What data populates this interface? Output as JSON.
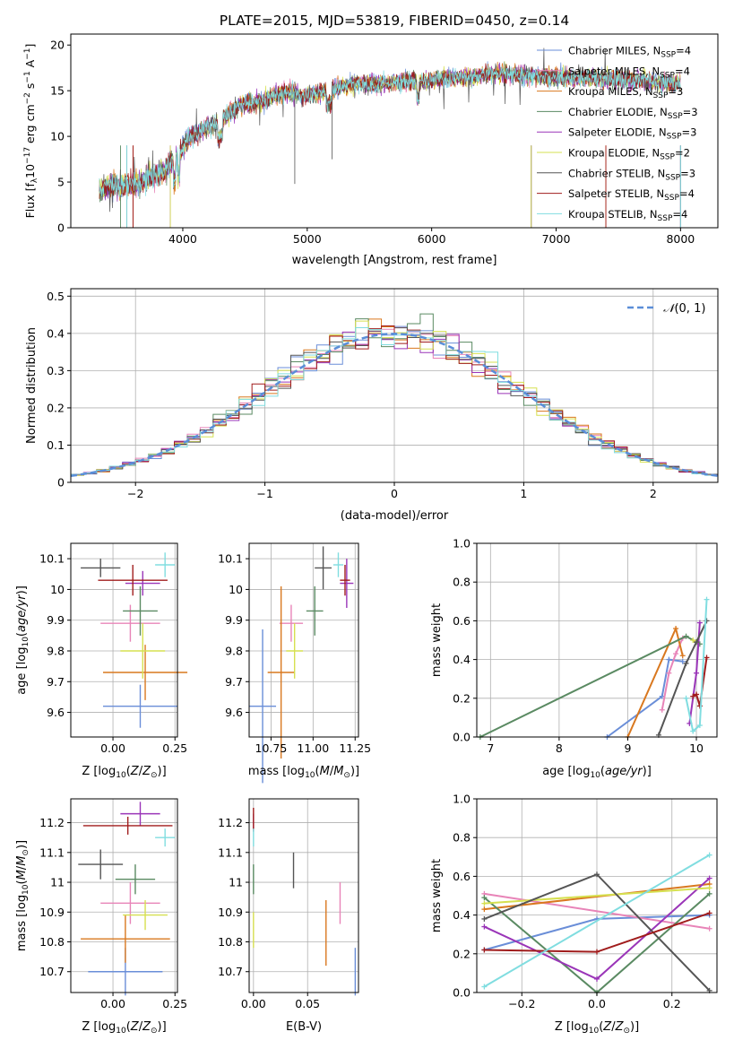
{
  "figure_title": "PLATE=2015, MJD=53819, FIBERID=0450, z=0.14",
  "series_styles": [
    {
      "name": "Chabrier MILES, N$_{SSP}$=4",
      "legend": "Chabrier MILES, N",
      "nssp": "4",
      "color": "#6a8ed8"
    },
    {
      "name": "Salpeter MILES, N$_{SSP}$=4",
      "legend": "Salpeter MILES, N",
      "nssp": "4",
      "color": "#e884b8"
    },
    {
      "name": "Kroupa MILES, N$_{SSP}$=3",
      "legend": "Kroupa MILES, N",
      "nssp": "3",
      "color": "#d9781f"
    },
    {
      "name": "Chabrier ELODIE, N$_{SSP}$=3",
      "legend": "Chabrier ELODIE, N",
      "nssp": "3",
      "color": "#5a8a62"
    },
    {
      "name": "Salpeter ELODIE, N$_{SSP}$=3",
      "legend": "Salpeter ELODIE, N",
      "nssp": "3",
      "color": "#9a35b8"
    },
    {
      "name": "Kroupa ELODIE, N$_{SSP}$=2",
      "legend": "Kroupa ELODIE, N",
      "nssp": "2",
      "color": "#d6e050"
    },
    {
      "name": "Chabrier STELIB, N$_{SSP}$=3",
      "legend": "Chabrier STELIB, N",
      "nssp": "3",
      "color": "#555555"
    },
    {
      "name": "Salpeter STELIB, N$_{SSP}$=4",
      "legend": "Salpeter STELIB, N",
      "nssp": "4",
      "color": "#a01c1c"
    },
    {
      "name": "Kroupa STELIB, N$_{SSP}$=4",
      "legend": "Kroupa STELIB, N",
      "nssp": "4",
      "color": "#80dde0"
    }
  ],
  "legend_sub": "SSP",
  "chart_data": [
    {
      "id": "spectrum",
      "type": "line",
      "xlabel": "wavelength [Angstrom, rest frame]",
      "ylabel": "Flux [f$_\\lambda$10$^{-17}$ erg cm$^{-2}$ s$^{-1}$ A$^{-1}$]",
      "xlim": [
        3100,
        8300
      ],
      "ylim": [
        0,
        21.2
      ],
      "xticks": [
        4000,
        5000,
        6000,
        7000,
        8000
      ],
      "yticks": [
        0,
        5,
        10,
        15,
        20
      ],
      "legend_position": "top-right",
      "x": [
        3350,
        3450,
        3550,
        3650,
        3750,
        3850,
        3950,
        4050,
        4150,
        4250,
        4350,
        4450,
        4550,
        4650,
        4750,
        4850,
        4950,
        5050,
        5150,
        5250,
        5350,
        5450,
        5550,
        5650,
        5750,
        5850,
        5950,
        6050,
        6150,
        6250,
        6350,
        6450,
        6550,
        6650,
        6750,
        6850,
        6950,
        7050,
        7150,
        7250,
        7350,
        7450,
        7550,
        7650,
        7750,
        7850,
        7950
      ],
      "y": [
        4.3,
        4.6,
        4.5,
        5.0,
        5.6,
        6.2,
        7.9,
        9.8,
        10.8,
        11.3,
        12.3,
        13.3,
        13.7,
        13.9,
        14.6,
        14.8,
        14.4,
        14.6,
        14.9,
        15.4,
        15.7,
        15.8,
        15.7,
        15.8,
        16.0,
        16.1,
        16.0,
        16.3,
        16.4,
        16.5,
        16.6,
        16.9,
        16.9,
        16.8,
        16.7,
        16.6,
        16.4,
        16.5,
        16.5,
        16.5,
        16.3,
        16.2,
        16.3,
        16.1,
        16.0,
        15.9,
        15.8
      ],
      "lower_cutoffs": [
        3600,
        3600,
        3600,
        3500,
        3900,
        3900,
        3550,
        3600,
        3550
      ],
      "upper_cutoffs": [
        8000,
        8000,
        7400,
        6800,
        6800,
        6800,
        8000,
        7400,
        8000
      ]
    },
    {
      "id": "residuals",
      "type": "histogram",
      "xlabel": "(data-model)/error",
      "ylabel": "Normed distribution",
      "xlim": [
        -2.5,
        2.5
      ],
      "ylim": [
        0,
        0.52
      ],
      "xticks": [
        -2,
        -1,
        0,
        1,
        2
      ],
      "yticks": [
        0,
        0.1,
        0.2,
        0.3,
        0.4,
        0.5
      ],
      "grid": true,
      "bin_width": 0.1,
      "bin_start": -2.5,
      "reference_curve": "N(0,1)",
      "reference_label": "N(0,1)",
      "reference_color": "#5a8ed8",
      "legend_position": "top-right"
    },
    {
      "id": "age_vs_Z",
      "type": "errorbar",
      "xlabel": "Z [log10(Z/Z_sun)]",
      "ylabel": "age [log10(age/yr)]",
      "xlim": [
        -0.17,
        0.26
      ],
      "ylim": [
        9.52,
        10.15
      ],
      "xticks": [
        0.0,
        0.25
      ],
      "xtick_labels": [
        "0.00",
        "0.25"
      ],
      "yticks": [
        9.6,
        9.7,
        9.8,
        9.9,
        10.0,
        10.1
      ],
      "grid": true,
      "points": [
        {
          "x": 0.11,
          "xerr": 0.15,
          "y": 9.62,
          "yerr": 0.07
        },
        {
          "x": 0.07,
          "xerr": 0.12,
          "y": 9.89,
          "yerr": 0.06
        },
        {
          "x": 0.13,
          "xerr": 0.17,
          "y": 9.73,
          "yerr": 0.09
        },
        {
          "x": 0.11,
          "xerr": 0.07,
          "y": 9.93,
          "yerr": 0.08
        },
        {
          "x": 0.12,
          "xerr": 0.07,
          "y": 10.02,
          "yerr": 0.04
        },
        {
          "x": 0.12,
          "xerr": 0.09,
          "y": 9.8,
          "yerr": 0.09
        },
        {
          "x": -0.05,
          "xerr": 0.08,
          "y": 10.07,
          "yerr": 0.03
        },
        {
          "x": 0.08,
          "xerr": 0.14,
          "y": 10.03,
          "yerr": 0.05
        },
        {
          "x": 0.21,
          "xerr": 0.04,
          "y": 10.08,
          "yerr": 0.04
        }
      ]
    },
    {
      "id": "age_vs_mass",
      "type": "errorbar",
      "xlabel": "mass [log10(M/M_sun)]",
      "xlim": [
        10.62,
        11.27
      ],
      "ylim": [
        9.52,
        10.15
      ],
      "xticks": [
        10.75,
        11.0,
        11.25
      ],
      "xtick_labels": [
        "10.75",
        "11.00",
        "11.25"
      ],
      "yticks": [
        9.6,
        9.7,
        9.8,
        9.9,
        10.0,
        10.1
      ],
      "grid": true,
      "points": [
        {
          "x": 10.7,
          "xerr": 0.08,
          "y": 9.62,
          "yerr": 0.25
        },
        {
          "x": 10.87,
          "xerr": 0.07,
          "y": 9.89,
          "yerr": 0.06
        },
        {
          "x": 10.81,
          "xerr": 0.08,
          "y": 9.73,
          "yerr": 0.28
        },
        {
          "x": 11.01,
          "xerr": 0.05,
          "y": 9.93,
          "yerr": 0.08
        },
        {
          "x": 11.2,
          "xerr": 0.04,
          "y": 10.02,
          "yerr": 0.08
        },
        {
          "x": 10.89,
          "xerr": 0.05,
          "y": 9.8,
          "yerr": 0.09
        },
        {
          "x": 11.06,
          "xerr": 0.05,
          "y": 10.07,
          "yerr": 0.07
        },
        {
          "x": 11.19,
          "xerr": 0.03,
          "y": 10.03,
          "yerr": 0.05
        },
        {
          "x": 11.15,
          "xerr": 0.03,
          "y": 10.08,
          "yerr": 0.04
        }
      ]
    },
    {
      "id": "weight_vs_age",
      "type": "line",
      "xlabel": "age [log10(age/yr)]",
      "ylabel": "mass weight",
      "xlim": [
        6.8,
        10.3
      ],
      "ylim": [
        0,
        1.0
      ],
      "xticks": [
        7,
        8,
        9,
        10
      ],
      "yticks": [
        0,
        0.2,
        0.4,
        0.6,
        0.8,
        1.0
      ],
      "ytick_labels": [
        "0.0",
        "0.2",
        "0.4",
        "0.6",
        "0.8",
        "1.0"
      ],
      "grid": true,
      "series": [
        {
          "x": [
            8.7,
            9.5,
            9.6,
            9.8
          ],
          "y": [
            0.0,
            0.21,
            0.4,
            0.39
          ]
        },
        {
          "x": [
            9.5,
            9.6,
            9.7,
            9.8
          ],
          "y": [
            0.14,
            0.33,
            0.43,
            0.51
          ]
        },
        {
          "x": [
            9.0,
            9.7,
            9.8
          ],
          "y": [
            0.0,
            0.56,
            0.42
          ]
        },
        {
          "x": [
            6.85,
            9.85,
            10.05
          ],
          "y": [
            0.0,
            0.52,
            0.48
          ]
        },
        {
          "x": [
            9.9,
            10.0,
            10.05
          ],
          "y": [
            0.07,
            0.33,
            0.59
          ]
        },
        {
          "x": [
            9.95,
            10.0
          ],
          "y": [
            0.5,
            0.49
          ]
        },
        {
          "x": [
            9.45,
            9.85,
            10.0,
            10.15
          ],
          "y": [
            0.01,
            0.38,
            0.49,
            0.6
          ]
        },
        {
          "x": [
            9.95,
            10.0,
            10.05,
            10.15
          ],
          "y": [
            0.21,
            0.22,
            0.16,
            0.41
          ]
        },
        {
          "x": [
            9.85,
            9.95,
            10.05,
            10.15
          ],
          "y": [
            0.2,
            0.03,
            0.06,
            0.71
          ]
        }
      ]
    },
    {
      "id": "mass_vs_Z",
      "type": "errorbar",
      "xlabel": "Z [log10(Z/Z_sun)]",
      "ylabel": "mass [log10(M/M_sun)]",
      "xlim": [
        -0.17,
        0.26
      ],
      "ylim": [
        10.63,
        11.28
      ],
      "xticks": [
        0.0,
        0.25
      ],
      "xtick_labels": [
        "0.00",
        "0.25"
      ],
      "yticks": [
        10.7,
        10.8,
        10.9,
        11.0,
        11.1,
        11.2
      ],
      "grid": true,
      "points": [
        {
          "x": 0.05,
          "xerr": 0.15,
          "y": 10.7,
          "yerr": 0.08
        },
        {
          "x": 0.07,
          "xerr": 0.12,
          "y": 10.93,
          "yerr": 0.07
        },
        {
          "x": 0.05,
          "xerr": 0.18,
          "y": 10.81,
          "yerr": 0.08
        },
        {
          "x": 0.09,
          "xerr": 0.08,
          "y": 11.01,
          "yerr": 0.05
        },
        {
          "x": 0.11,
          "xerr": 0.08,
          "y": 11.23,
          "yerr": 0.04
        },
        {
          "x": 0.13,
          "xerr": 0.09,
          "y": 10.89,
          "yerr": 0.05
        },
        {
          "x": -0.05,
          "xerr": 0.09,
          "y": 11.06,
          "yerr": 0.05
        },
        {
          "x": 0.06,
          "xerr": 0.18,
          "y": 11.19,
          "yerr": 0.03
        },
        {
          "x": 0.21,
          "xerr": 0.04,
          "y": 11.15,
          "yerr": 0.03
        }
      ]
    },
    {
      "id": "mass_vs_ebv",
      "type": "errorbar",
      "xlabel": "E(B-V)",
      "xlim": [
        -0.004,
        0.097
      ],
      "ylim": [
        10.63,
        11.28
      ],
      "xticks": [
        0.0,
        0.05
      ],
      "xtick_labels": [
        "0.00",
        "0.05"
      ],
      "yticks": [
        10.7,
        10.8,
        10.9,
        11.0,
        11.1,
        11.2
      ],
      "grid": true,
      "points": [
        {
          "x": 0.094,
          "xerr": 0,
          "y": 10.7,
          "yerr": 0.08
        },
        {
          "x": 0.08,
          "xerr": 0,
          "y": 10.93,
          "yerr": 0.07
        },
        {
          "x": 0.067,
          "xerr": 0,
          "y": 10.83,
          "yerr": 0.11
        },
        {
          "x": 0.0,
          "xerr": 0,
          "y": 11.01,
          "yerr": 0.05
        },
        {
          "x": 0.0,
          "xerr": 0,
          "y": 11.2,
          "yerr": 0.03
        },
        {
          "x": 0.0,
          "xerr": 0,
          "y": 10.84,
          "yerr": 0.06
        },
        {
          "x": 0.037,
          "xerr": 0,
          "y": 11.04,
          "yerr": 0.06
        },
        {
          "x": 0.0,
          "xerr": 0,
          "y": 11.21,
          "yerr": 0.04
        },
        {
          "x": 0.0,
          "xerr": 0,
          "y": 11.15,
          "yerr": 0.03
        }
      ]
    },
    {
      "id": "weight_vs_Z",
      "type": "line",
      "xlabel": "Z [log10(Z/Z_sun)]",
      "ylabel": "mass weight",
      "xlim": [
        -0.32,
        0.32
      ],
      "ylim": [
        0,
        1.0
      ],
      "xticks": [
        -0.2,
        0.0,
        0.2
      ],
      "xtick_labels": [
        "−0.2",
        "0.0",
        "0.2"
      ],
      "yticks": [
        0,
        0.2,
        0.4,
        0.6,
        0.8,
        1.0
      ],
      "ytick_labels": [
        "0.0",
        "0.2",
        "0.4",
        "0.6",
        "0.8",
        "1.0"
      ],
      "grid": true,
      "series": [
        {
          "x": [
            -0.3,
            0.0,
            0.3
          ],
          "y": [
            0.22,
            0.38,
            0.4
          ]
        },
        {
          "x": [
            -0.3,
            0.3
          ],
          "y": [
            0.51,
            0.33
          ]
        },
        {
          "x": [
            -0.3,
            0.3
          ],
          "y": [
            0.43,
            0.56
          ]
        },
        {
          "x": [
            -0.3,
            0.0,
            0.3
          ],
          "y": [
            0.49,
            0.0,
            0.51
          ]
        },
        {
          "x": [
            -0.3,
            0.0,
            0.3
          ],
          "y": [
            0.34,
            0.07,
            0.59
          ]
        },
        {
          "x": [
            -0.3,
            0.3
          ],
          "y": [
            0.46,
            0.54
          ]
        },
        {
          "x": [
            -0.3,
            0.0,
            0.3
          ],
          "y": [
            0.38,
            0.61,
            0.01
          ]
        },
        {
          "x": [
            -0.3,
            0.0,
            0.3
          ],
          "y": [
            0.22,
            0.21,
            0.41
          ]
        },
        {
          "x": [
            -0.3,
            0.3
          ],
          "y": [
            0.03,
            0.71
          ]
        }
      ]
    }
  ]
}
